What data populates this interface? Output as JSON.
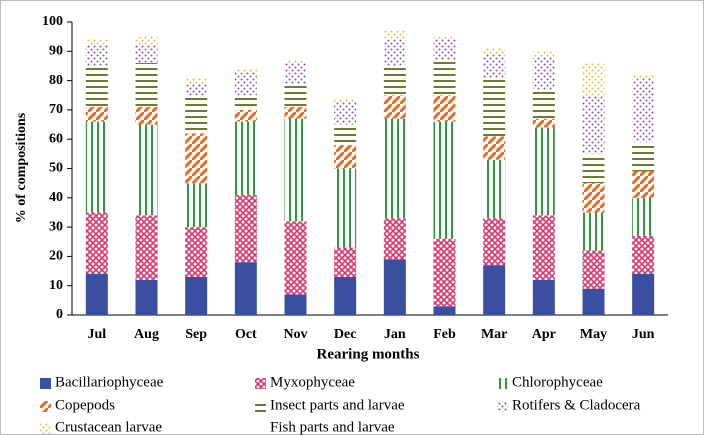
{
  "chart_data": {
    "type": "bar",
    "stacked": true,
    "y_label": "% of compositions",
    "x_label": "Rearing months",
    "categories": [
      "Jul",
      "Aug",
      "Sep",
      "Oct",
      "Nov",
      "Dec",
      "Jan",
      "Feb",
      "Mar",
      "Apr",
      "May",
      "Jun"
    ],
    "ylim": [
      0,
      100
    ],
    "yticks": [
      0,
      10,
      20,
      30,
      40,
      50,
      60,
      70,
      80,
      90,
      100
    ],
    "legend": "bottom",
    "series": [
      {
        "name": "Bacillariophyceae",
        "color": "#3a4fa0",
        "pattern": "solid",
        "values": [
          14,
          12,
          13,
          18,
          7,
          13,
          19,
          3,
          17,
          12,
          9,
          14
        ]
      },
      {
        "name": "Myxophyceae",
        "color": "#e0336b",
        "pattern": "crosshatch",
        "values": [
          21,
          22,
          17,
          23,
          25,
          10,
          14,
          23,
          16,
          22,
          13,
          13
        ]
      },
      {
        "name": "Chlorophyceae",
        "color": "#2e9a3c",
        "pattern": "vertical",
        "values": [
          31,
          31,
          15,
          25,
          35,
          27,
          34,
          40,
          20,
          30,
          13,
          13
        ]
      },
      {
        "name": "Copepods",
        "color": "#ef6a1e",
        "pattern": "diagonal",
        "values": [
          5,
          6,
          17,
          4,
          4,
          8,
          8,
          9,
          8,
          3,
          10,
          9
        ]
      },
      {
        "name": "Insect parts and larvae",
        "color": "#6f7a2a",
        "pattern": "horizontal",
        "values": [
          14,
          15,
          13,
          5,
          8,
          7,
          10,
          12,
          20,
          10,
          10,
          10
        ]
      },
      {
        "name": "Rotifers & Cladocera",
        "color": "#8a4fb5",
        "pattern": "dots",
        "values": [
          7,
          6,
          4,
          8,
          7,
          8,
          9,
          7,
          8,
          11,
          20,
          22
        ]
      },
      {
        "name": "Crustacean larvae",
        "color": "#f0c020",
        "pattern": "dots",
        "values": [
          2,
          3,
          2,
          1,
          1,
          1,
          3,
          1,
          2,
          2,
          11,
          1
        ]
      },
      {
        "name": "Fish parts and larvae",
        "color": "#ffffff",
        "pattern": "solid",
        "values": [
          0,
          0,
          0,
          0,
          0,
          0,
          0,
          0,
          0,
          0,
          0,
          0
        ]
      }
    ]
  }
}
